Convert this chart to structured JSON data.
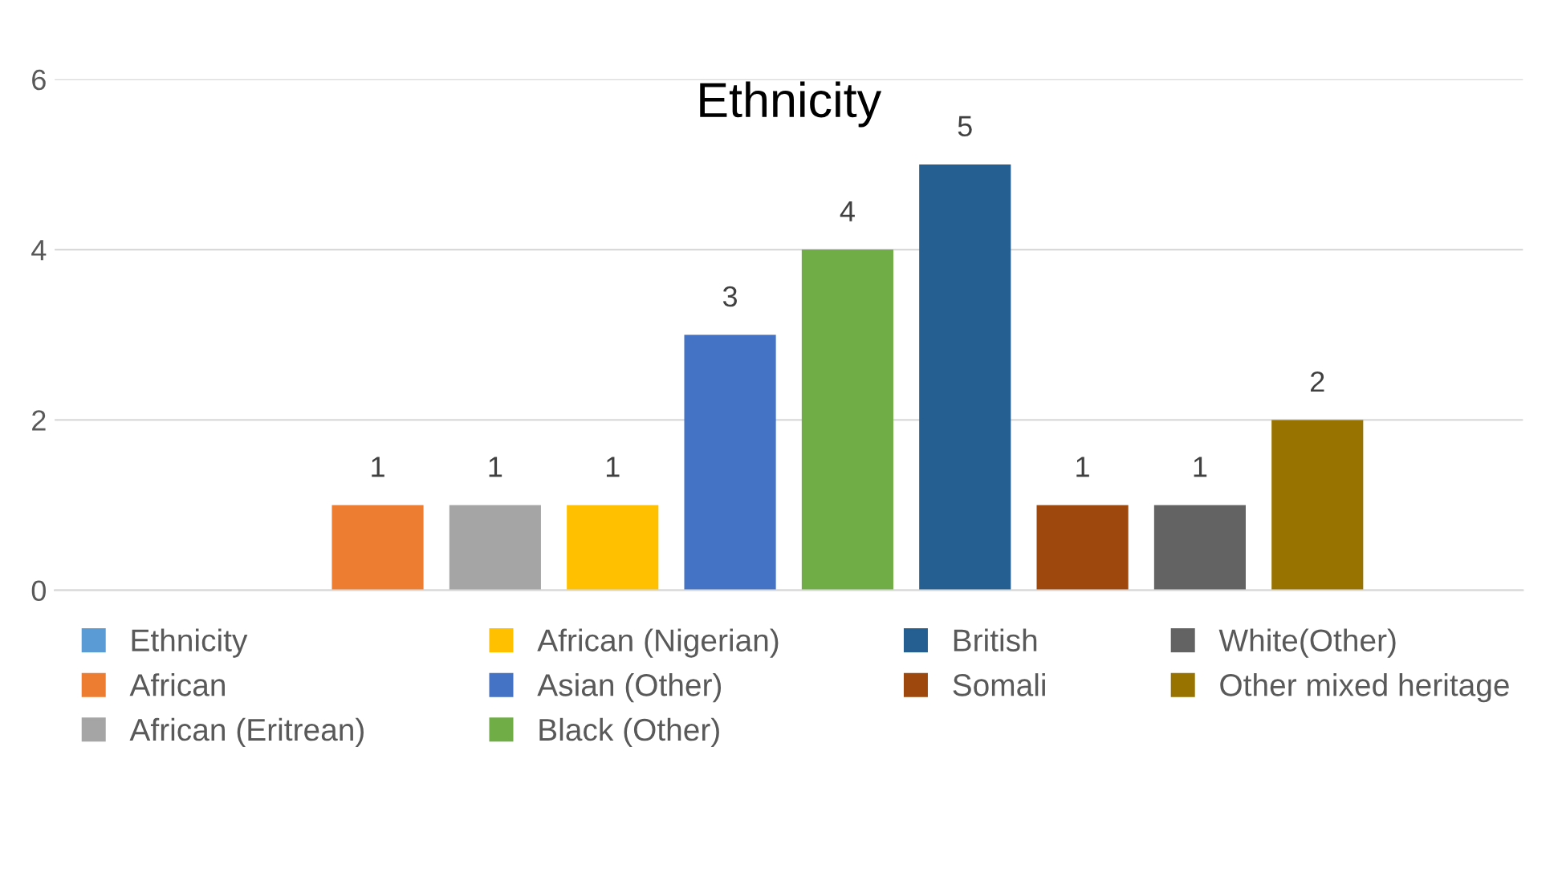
{
  "chart_data": {
    "type": "bar",
    "title": "Ethnicity",
    "categories": [
      null
    ],
    "series": [
      {
        "name": "Ethnicity",
        "color": "#5b9bd5",
        "values": [
          null
        ]
      },
      {
        "name": "African",
        "color": "#ed7d31",
        "values": [
          1
        ]
      },
      {
        "name": "African (Eritrean)",
        "color": "#a5a5a5",
        "values": [
          1
        ]
      },
      {
        "name": "African (Nigerian)",
        "color": "#ffc000",
        "values": [
          1
        ]
      },
      {
        "name": "Asian (Other)",
        "color": "#4472c4",
        "values": [
          3
        ]
      },
      {
        "name": "Black (Other)",
        "color": "#70ad47",
        "values": [
          4
        ]
      },
      {
        "name": "British",
        "color": "#255e91",
        "values": [
          5
        ]
      },
      {
        "name": "Somali",
        "color": "#9e480e",
        "values": [
          1
        ]
      },
      {
        "name": "White(Other)",
        "color": "#636363",
        "values": [
          1
        ]
      },
      {
        "name": "Other mixed heritage",
        "color": "#997300",
        "values": [
          2
        ]
      }
    ],
    "ylim": [
      0,
      6
    ],
    "yticks": [
      0,
      2,
      4,
      6
    ],
    "grid": "y",
    "legend": "bottom",
    "data_labels": true
  }
}
